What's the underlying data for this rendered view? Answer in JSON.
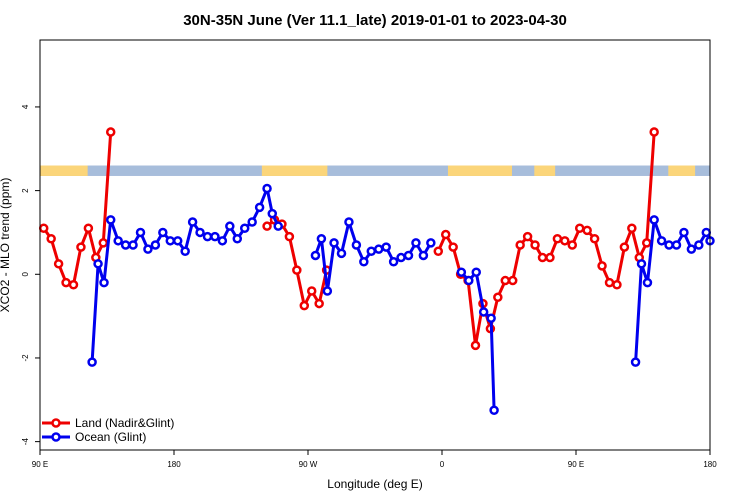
{
  "chart_data": {
    "type": "line",
    "title": "30N-35N June (Ver 11.1_late)   2019-01-01 to 2023-04-30",
    "xlabel": "Longitude (deg E)",
    "ylabel": "XCO2 - MLO trend (ppm)",
    "xlim": [
      90,
      540
    ],
    "ylim": [
      -4.2,
      5.6
    ],
    "xticks": [
      {
        "value": 90,
        "label": "90 E"
      },
      {
        "value": 180,
        "label": "180"
      },
      {
        "value": 270,
        "label": "90 W"
      },
      {
        "value": 360,
        "label": "0"
      },
      {
        "value": 450,
        "label": "90 E"
      },
      {
        "value": 540,
        "label": "180"
      }
    ],
    "yticks": [
      {
        "value": -4,
        "label": "-4"
      },
      {
        "value": -2,
        "label": "-2"
      },
      {
        "value": 0,
        "label": "0"
      },
      {
        "value": 2,
        "label": "2"
      },
      {
        "value": 4,
        "label": "4"
      }
    ],
    "legend_position": "bottom-left",
    "surface_band": {
      "y_range": [
        2.35,
        2.6
      ],
      "land_color": "#fbd57a",
      "ocean_color": "#a7bddb",
      "land_segments": [
        [
          90,
          122
        ],
        [
          239,
          283
        ],
        [
          364,
          407
        ],
        [
          422,
          436
        ],
        [
          512,
          530
        ]
      ]
    },
    "series": [
      {
        "name": "Land (Nadir&Glint)",
        "color": "#ee0000",
        "segments": [
          [
            [
              92.5,
              1.1
            ],
            [
              97.5,
              0.85
            ],
            [
              102.5,
              0.25
            ],
            [
              107.5,
              -0.2
            ],
            [
              112.5,
              -0.25
            ],
            [
              117.5,
              0.65
            ],
            [
              122.5,
              1.1
            ],
            [
              127.5,
              0.4
            ],
            [
              132.5,
              0.75
            ],
            [
              137.5,
              3.4
            ]
          ],
          [
            [
              242.5,
              1.15
            ],
            [
              247.5,
              1.3
            ],
            [
              252.5,
              1.2
            ],
            [
              257.5,
              0.9
            ],
            [
              262.5,
              0.1
            ],
            [
              267.5,
              -0.75
            ],
            [
              272.5,
              -0.4
            ],
            [
              277.5,
              -0.7
            ],
            [
              282.5,
              0.1
            ]
          ],
          [
            [
              357.5,
              0.55
            ],
            [
              362.5,
              0.95
            ],
            [
              367.5,
              0.65
            ],
            [
              372.5,
              0.0
            ],
            [
              377.5,
              -0.15
            ],
            [
              382.5,
              -1.7
            ],
            [
              387.5,
              -0.7
            ],
            [
              392.5,
              -1.3
            ],
            [
              397.5,
              -0.55
            ],
            [
              402.5,
              -0.15
            ],
            [
              407.5,
              -0.15
            ],
            [
              412.5,
              0.7
            ],
            [
              417.5,
              0.9
            ],
            [
              422.5,
              0.7
            ],
            [
              427.5,
              0.4
            ],
            [
              432.5,
              0.4
            ],
            [
              437.5,
              0.85
            ],
            [
              442.5,
              0.8
            ],
            [
              447.5,
              0.7
            ],
            [
              452.5,
              1.1
            ],
            [
              457.5,
              1.05
            ],
            [
              462.5,
              0.85
            ],
            [
              467.5,
              0.2
            ],
            [
              472.5,
              -0.2
            ],
            [
              477.5,
              -0.25
            ],
            [
              482.5,
              0.65
            ],
            [
              487.5,
              1.1
            ],
            [
              492.5,
              0.4
            ],
            [
              497.5,
              0.75
            ],
            [
              502.5,
              3.4
            ]
          ]
        ]
      },
      {
        "name": "Ocean (Glint)",
        "color": "#0000ee",
        "segments": [
          [
            [
              125,
              -2.1
            ],
            [
              129,
              0.25
            ],
            [
              133,
              -0.2
            ],
            [
              137.5,
              1.3
            ],
            [
              142.5,
              0.8
            ],
            [
              147.5,
              0.7
            ],
            [
              152.5,
              0.7
            ],
            [
              157.5,
              1.0
            ],
            [
              162.5,
              0.6
            ],
            [
              167.5,
              0.7
            ],
            [
              172.5,
              1.0
            ],
            [
              177.5,
              0.8
            ],
            [
              182.5,
              0.8
            ],
            [
              187.5,
              0.55
            ],
            [
              192.5,
              1.25
            ],
            [
              197.5,
              1.0
            ],
            [
              202.5,
              0.9
            ],
            [
              207.5,
              0.9
            ],
            [
              212.5,
              0.8
            ],
            [
              217.5,
              1.15
            ],
            [
              222.5,
              0.85
            ],
            [
              227.5,
              1.1
            ],
            [
              232.5,
              1.25
            ],
            [
              237.5,
              1.6
            ],
            [
              242.5,
              2.05
            ],
            [
              246,
              1.45
            ],
            [
              250,
              1.15
            ]
          ],
          [
            [
              275,
              0.45
            ],
            [
              279,
              0.85
            ],
            [
              283,
              -0.4
            ],
            [
              287.5,
              0.75
            ],
            [
              292.5,
              0.5
            ],
            [
              297.5,
              1.25
            ],
            [
              302.5,
              0.7
            ],
            [
              307.5,
              0.3
            ],
            [
              312.5,
              0.55
            ],
            [
              317.5,
              0.6
            ],
            [
              322.5,
              0.65
            ],
            [
              327.5,
              0.3
            ],
            [
              332.5,
              0.4
            ],
            [
              337.5,
              0.45
            ],
            [
              342.5,
              0.75
            ],
            [
              347.5,
              0.45
            ],
            [
              352.5,
              0.75
            ]
          ],
          [
            [
              373,
              0.05
            ],
            [
              378,
              -0.15
            ],
            [
              383,
              0.05
            ],
            [
              388,
              -0.9
            ],
            [
              393,
              -1.05
            ],
            [
              395,
              -3.25
            ]
          ],
          [
            [
              490,
              -2.1
            ],
            [
              494,
              0.25
            ],
            [
              498,
              -0.2
            ],
            [
              502.5,
              1.3
            ],
            [
              507.5,
              0.8
            ],
            [
              512.5,
              0.7
            ],
            [
              517.5,
              0.7
            ],
            [
              522.5,
              1.0
            ],
            [
              527.5,
              0.6
            ],
            [
              532.5,
              0.7
            ],
            [
              537.5,
              1.0
            ],
            [
              540,
              0.8
            ]
          ]
        ]
      }
    ]
  }
}
